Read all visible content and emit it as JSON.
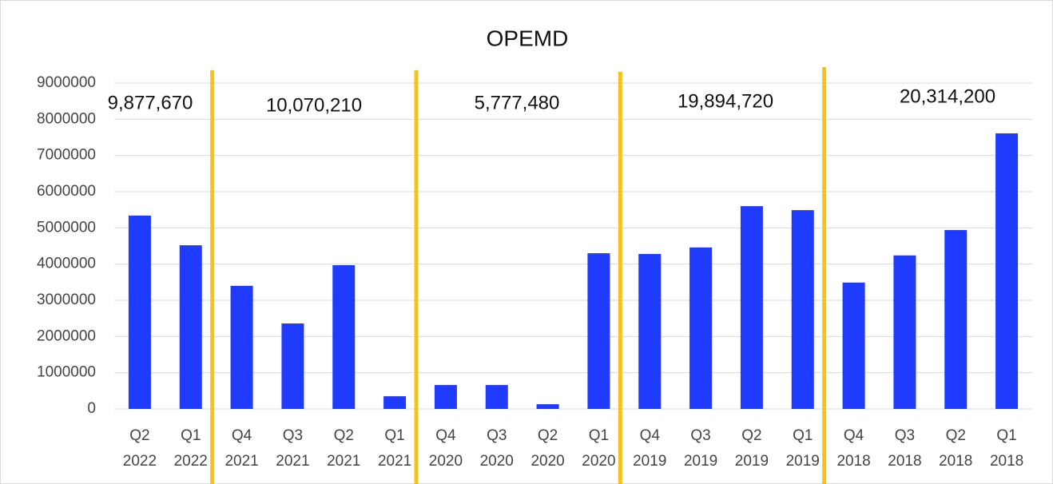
{
  "chart_data": {
    "type": "bar",
    "title": "OPEMD",
    "categories": [
      [
        "Q2",
        "2022"
      ],
      [
        "Q1",
        "2022"
      ],
      [
        "Q4",
        "2021"
      ],
      [
        "Q3",
        "2021"
      ],
      [
        "Q2",
        "2021"
      ],
      [
        "Q1",
        "2021"
      ],
      [
        "Q4",
        "2020"
      ],
      [
        "Q3",
        "2020"
      ],
      [
        "Q2",
        "2020"
      ],
      [
        "Q1",
        "2020"
      ],
      [
        "Q4",
        "2019"
      ],
      [
        "Q3",
        "2019"
      ],
      [
        "Q2",
        "2019"
      ],
      [
        "Q1",
        "2019"
      ],
      [
        "Q4",
        "2018"
      ],
      [
        "Q3",
        "2018"
      ],
      [
        "Q2",
        "2018"
      ],
      [
        "Q1",
        "2018"
      ]
    ],
    "values": [
      5340000,
      4520000,
      3400000,
      2360000,
      3970000,
      350000,
      660000,
      660000,
      130000,
      4300000,
      4280000,
      4460000,
      5600000,
      5490000,
      3490000,
      4240000,
      4940000,
      7610000
    ],
    "color": "#1f3bff",
    "ylim": [
      0,
      9000000
    ],
    "yticks": [
      0,
      1000000,
      2000000,
      3000000,
      4000000,
      5000000,
      6000000,
      7000000,
      8000000,
      9000000
    ],
    "grid": true,
    "annotations": [
      "9,877,670",
      "10,070,210",
      "5,777,480",
      "19,894,720",
      "20,314,200"
    ]
  }
}
